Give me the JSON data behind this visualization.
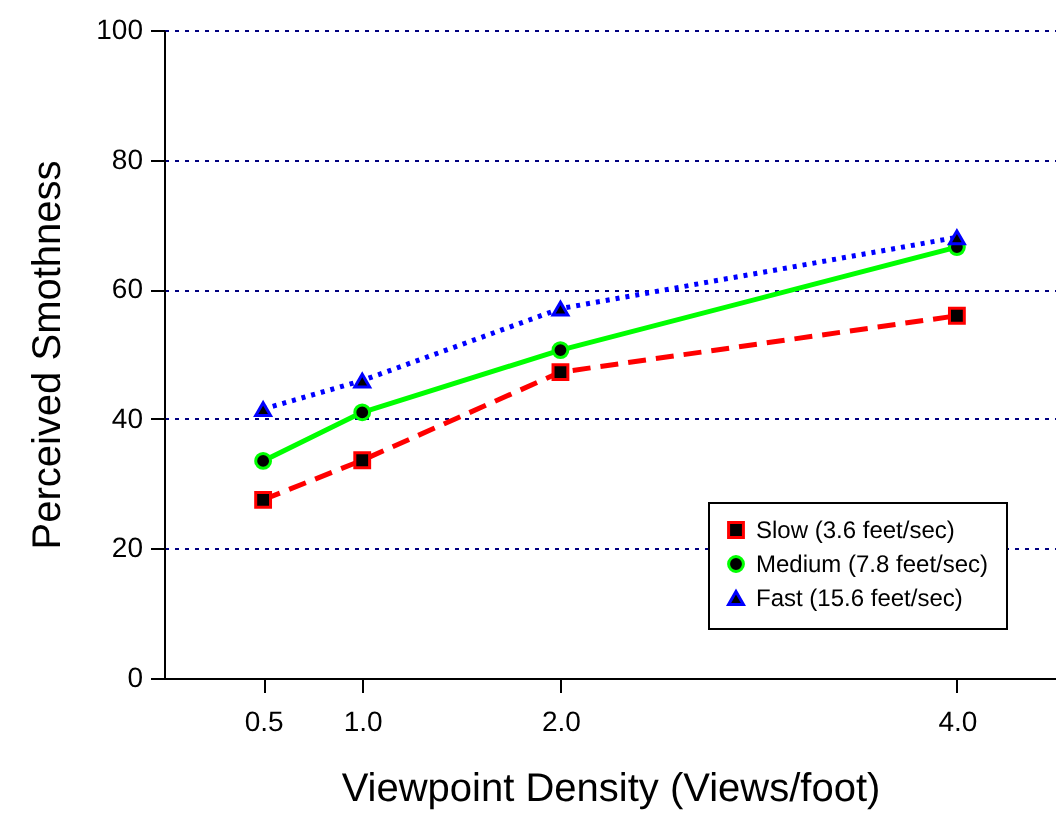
{
  "chart_data": {
    "type": "line",
    "xlabel": "Viewpoint Density (Views/foot)",
    "ylabel": "Perceived Smothness",
    "x": [
      0.5,
      1.0,
      2.0,
      4.0
    ],
    "xlim": [
      0,
      4.5
    ],
    "xticks": [
      {
        "value": 0.5,
        "label": "0.5"
      },
      {
        "value": 1,
        "label": "1.0"
      },
      {
        "value": 2,
        "label": "2.0"
      },
      {
        "value": 4,
        "label": "4.0"
      }
    ],
    "ylim": [
      0,
      100
    ],
    "yticks": [
      0,
      20,
      40,
      60,
      80,
      100
    ],
    "grid": "y",
    "legend": "bottom right",
    "series": [
      {
        "name": "Slow (3.6 feet/sec)",
        "color": "#ff0000",
        "line_style": "dashed",
        "marker": "square",
        "values": [
          27.5,
          33.6,
          47.2,
          55.9
        ]
      },
      {
        "name": "Medium (7.8 feet/sec)",
        "color": "#00ff00",
        "line_style": "solid",
        "marker": "circle",
        "values": [
          33.5,
          41.0,
          50.6,
          66.5
        ]
      },
      {
        "name": "Fast (15.6 feet/sec)",
        "color": "#0000ff",
        "line_style": "dotted",
        "marker": "triangle",
        "values": [
          41.5,
          45.9,
          57.0,
          68.0
        ]
      }
    ]
  }
}
